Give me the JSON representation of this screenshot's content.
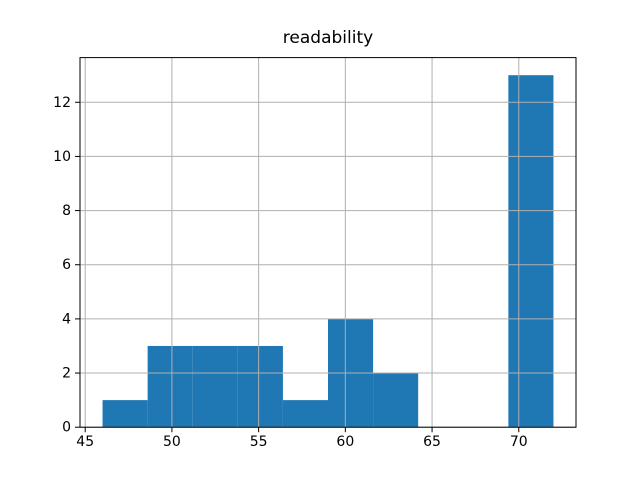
{
  "chart_data": {
    "type": "bar",
    "subtype": "histogram",
    "title": "readability",
    "xlabel": "",
    "ylabel": "",
    "bin_edges": [
      46.0,
      48.6,
      51.2,
      53.8,
      56.4,
      59.0,
      61.6,
      64.2,
      66.8,
      69.4,
      72.0
    ],
    "counts": [
      1,
      3,
      3,
      3,
      1,
      4,
      2,
      0,
      0,
      13
    ],
    "xlim": [
      44.7,
      73.3
    ],
    "ylim": [
      0,
      13.65
    ],
    "xticks": [
      45,
      50,
      55,
      60,
      65,
      70
    ],
    "yticks": [
      0,
      2,
      4,
      6,
      8,
      10,
      12
    ],
    "grid": true,
    "legend": "none",
    "bar_color": "#1f77b4",
    "grid_color": "#b0b0b0",
    "spine_color": "#000000",
    "text_color": "#000000"
  }
}
